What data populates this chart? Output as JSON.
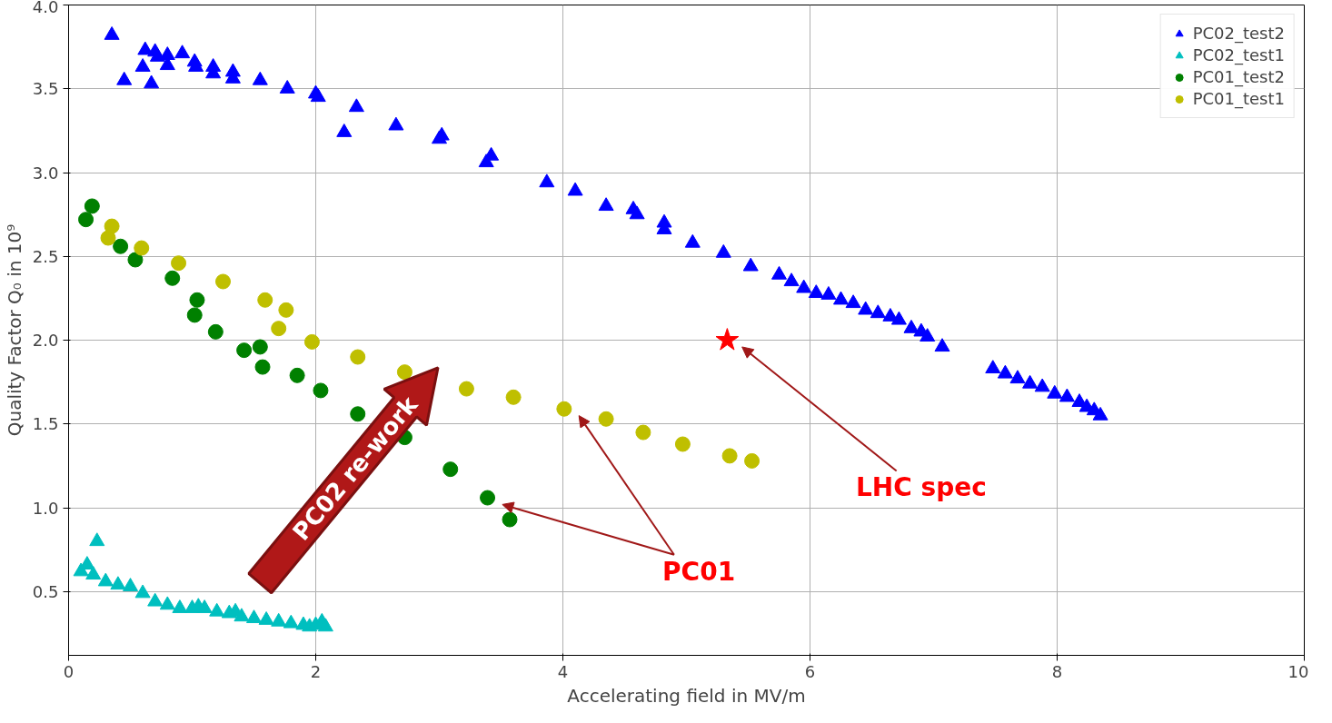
{
  "chart_data": {
    "type": "scatter",
    "xlabel": "Accelerating field in MV/m",
    "ylabel": "Quality Factor Q₀ in 10⁹",
    "xlim": [
      0,
      10
    ],
    "ylim": [
      0.12,
      4.0
    ],
    "xticks": [
      0,
      2,
      4,
      6,
      8,
      10
    ],
    "yticks": [
      {
        "value": 0.5,
        "label": "0.5"
      },
      {
        "value": 1.0,
        "label": "1.0"
      },
      {
        "value": 1.5,
        "label": "1.5"
      },
      {
        "value": 2.0,
        "label": "2.0"
      },
      {
        "value": 2.5,
        "label": "2.5"
      },
      {
        "value": 3.0,
        "label": "3.0"
      },
      {
        "value": 3.5,
        "label": "3.5"
      },
      {
        "value": 4.0,
        "label": "4.0"
      }
    ],
    "grid": true,
    "legend": "top right",
    "series": [
      {
        "name": "PC02_test2",
        "color": "#0000ff",
        "marker": "triangle",
        "x": [
          0.35,
          0.45,
          0.6,
          0.62,
          0.67,
          0.7,
          0.72,
          0.8,
          0.8,
          0.92,
          1.02,
          1.03,
          1.17,
          1.17,
          1.33,
          1.33,
          1.55,
          1.77,
          2.0,
          2.02,
          2.23,
          2.33,
          2.65,
          3.0,
          3.02,
          3.38,
          3.42,
          3.87,
          4.1,
          4.35,
          4.57,
          4.6,
          4.82,
          4.82,
          5.05,
          5.3,
          5.52,
          5.75,
          5.85,
          5.95,
          6.05,
          6.15,
          6.25,
          6.35,
          6.45,
          6.55,
          6.65,
          6.72,
          6.82,
          6.9,
          6.95,
          7.07,
          7.48,
          7.58,
          7.68,
          7.78,
          7.88,
          7.98,
          8.08,
          8.18,
          8.24,
          8.3,
          8.35
        ],
        "values": [
          3.82,
          3.55,
          3.63,
          3.73,
          3.53,
          3.72,
          3.69,
          3.7,
          3.64,
          3.71,
          3.66,
          3.63,
          3.63,
          3.59,
          3.6,
          3.56,
          3.55,
          3.5,
          3.47,
          3.45,
          3.24,
          3.39,
          3.28,
          3.2,
          3.22,
          3.06,
          3.1,
          2.94,
          2.89,
          2.8,
          2.78,
          2.75,
          2.7,
          2.66,
          2.58,
          2.52,
          2.44,
          2.39,
          2.35,
          2.31,
          2.28,
          2.27,
          2.24,
          2.22,
          2.18,
          2.16,
          2.14,
          2.12,
          2.07,
          2.05,
          2.02,
          1.96,
          1.83,
          1.8,
          1.77,
          1.74,
          1.72,
          1.68,
          1.66,
          1.63,
          1.6,
          1.58,
          1.55
        ]
      },
      {
        "name": "PC02_test1",
        "color": "#00bfbf",
        "marker": "triangle",
        "x": [
          0.1,
          0.15,
          0.2,
          0.23,
          0.3,
          0.4,
          0.5,
          0.6,
          0.7,
          0.8,
          0.9,
          1.0,
          1.05,
          1.1,
          1.2,
          1.3,
          1.35,
          1.4,
          1.5,
          1.6,
          1.7,
          1.8,
          1.9,
          1.95,
          2.0,
          2.05,
          2.08
        ],
        "values": [
          0.62,
          0.66,
          0.6,
          0.8,
          0.56,
          0.54,
          0.53,
          0.49,
          0.44,
          0.42,
          0.4,
          0.4,
          0.41,
          0.4,
          0.38,
          0.37,
          0.38,
          0.35,
          0.34,
          0.33,
          0.32,
          0.31,
          0.3,
          0.29,
          0.3,
          0.32,
          0.29
        ]
      },
      {
        "name": "PC01_test2",
        "color": "#008000",
        "marker": "circle",
        "x": [
          0.14,
          0.19,
          0.42,
          0.54,
          0.84,
          1.04,
          1.02,
          1.19,
          1.42,
          1.55,
          1.57,
          1.85,
          2.04,
          2.34,
          2.72,
          3.09,
          3.39,
          3.57
        ],
        "values": [
          2.72,
          2.8,
          2.56,
          2.48,
          2.37,
          2.24,
          2.15,
          2.05,
          1.94,
          1.96,
          1.84,
          1.79,
          1.7,
          1.56,
          1.42,
          1.23,
          1.06,
          0.93
        ]
      },
      {
        "name": "PC01_test1",
        "color": "#bfbf00",
        "marker": "circle",
        "x": [
          0.32,
          0.35,
          0.59,
          0.89,
          1.25,
          1.59,
          1.76,
          1.7,
          1.97,
          2.34,
          2.72,
          3.22,
          3.6,
          4.01,
          4.35,
          4.65,
          4.97,
          5.35,
          5.53
        ],
        "values": [
          2.61,
          2.68,
          2.55,
          2.46,
          2.35,
          2.24,
          2.18,
          2.07,
          1.99,
          1.9,
          1.81,
          1.71,
          1.66,
          1.59,
          1.53,
          1.45,
          1.38,
          1.31,
          1.28
        ]
      },
      {
        "color": "#ff0000",
        "marker": "star",
        "x": [
          5.33
        ],
        "values": [
          2.0
        ]
      }
    ],
    "annotations": [
      "LHC spec",
      "PC01",
      "PC02 re-work"
    ]
  }
}
